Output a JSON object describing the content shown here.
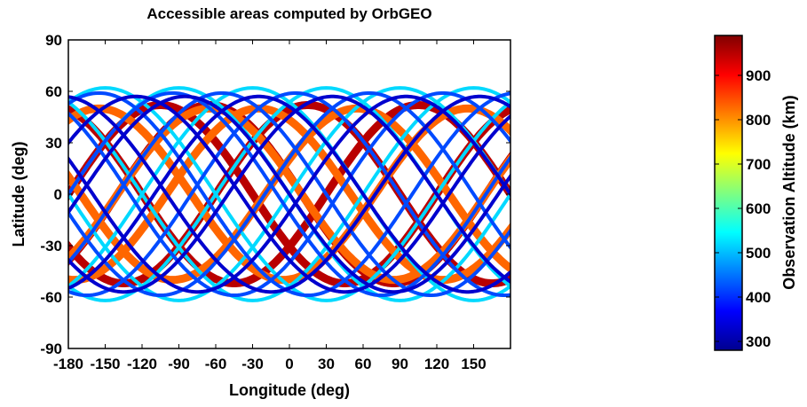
{
  "chart_data": {
    "type": "scatter",
    "title": "Accessible areas computed by OrbGEO",
    "xlabel": "Longitude (deg)",
    "ylabel": "Latitude (deg)",
    "xlim": [
      -180,
      180
    ],
    "ylim": [
      -90,
      90
    ],
    "xticks": [
      "-180",
      "-150",
      "-120",
      "-90",
      "-60",
      "-30",
      "0",
      "30",
      "60",
      "90",
      "120",
      "150"
    ],
    "yticks": [
      "90",
      "60",
      "30",
      "0",
      "-30",
      "-60",
      "-90"
    ],
    "grid": false,
    "colorbar": {
      "label": "Observation Altitude (km)",
      "range": [
        280,
        990
      ],
      "ticks": [
        "900",
        "800",
        "700",
        "600",
        "500",
        "400",
        "300"
      ],
      "colormap": "jet"
    },
    "series": [
      {
        "altitude_km": 950,
        "inclination_deg": 52,
        "period_deg": 300,
        "phases": [
          -140,
          -60,
          30,
          120
        ]
      },
      {
        "altitude_km": 830,
        "inclination_deg": 50,
        "period_deg": 300,
        "phases": [
          -100,
          -20,
          70,
          160
        ]
      },
      {
        "altitude_km": 330,
        "inclination_deg": 57,
        "period_deg": 340,
        "phases": [
          -170,
          -110,
          -50,
          10,
          70,
          130
        ]
      },
      {
        "altitude_km": 420,
        "inclination_deg": 59,
        "period_deg": 340,
        "phases": [
          -140,
          -80,
          -20,
          40,
          100,
          160
        ]
      },
      {
        "altitude_km": 520,
        "inclination_deg": 62,
        "period_deg": 360,
        "phases": [
          -180,
          -120,
          -60,
          0,
          60,
          120
        ]
      }
    ]
  }
}
